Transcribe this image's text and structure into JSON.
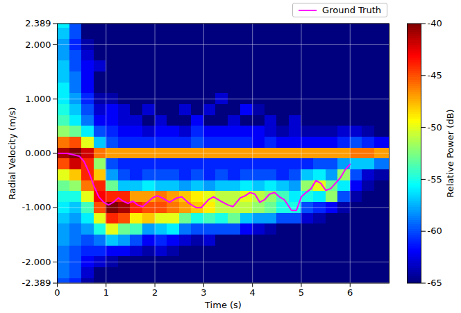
{
  "chart_data": {
    "type": "heatmap",
    "x_label": "Time (s)",
    "y_label": "Radial Velocity (m/s)",
    "xlim": [
      0,
      6.8
    ],
    "ylim": [
      -2.389,
      2.389
    ],
    "xticks": [
      0,
      1,
      2,
      3,
      4,
      5,
      6
    ],
    "yticks": [
      -2.389,
      {
        "value": -2,
        "label": "-2.000"
      },
      {
        "value": -1,
        "label": "-1.000"
      },
      {
        "value": 0,
        "label": "0.000"
      },
      {
        "value": 1,
        "label": "1.000"
      },
      {
        "value": 2,
        "label": "2.000"
      },
      2.389
    ],
    "grid": true,
    "legend": "top-right",
    "heatmap": {
      "x_edges": [
        0,
        0.25,
        0.5,
        0.75,
        1,
        1.25,
        1.5,
        1.75,
        2,
        2.25,
        2.5,
        2.75,
        3,
        3.25,
        3.5,
        3.75,
        4,
        4.25,
        4.5,
        4.75,
        5,
        5.25,
        5.5,
        5.75,
        6,
        6.25,
        6.5,
        6.8
      ],
      "y_edges": [
        2.5,
        2.3,
        2.1,
        1.9,
        1.7,
        1.5,
        1.3,
        1.1,
        0.9,
        0.7,
        0.5,
        0.3,
        0.1,
        -0.1,
        -0.3,
        -0.5,
        -0.7,
        -0.9,
        -1.1,
        -1.3,
        -1.5,
        -1.7,
        -1.9,
        -2.1,
        -2.3,
        -2.5
      ],
      "z": [
        [
          -56,
          -60,
          -65,
          -65,
          -65,
          -65,
          -65,
          -65,
          -65,
          -65,
          -65,
          -65,
          -65,
          -65,
          -65,
          -65,
          -65,
          -65,
          -65,
          -65,
          -65,
          -65,
          -65,
          -65,
          -65,
          -65,
          -65
        ],
        [
          -57,
          -60,
          -65,
          -65,
          -65,
          -65,
          -65,
          -65,
          -65,
          -65,
          -65,
          -65,
          -65,
          -65,
          -65,
          -65,
          -65,
          -65,
          -65,
          -65,
          -65,
          -65,
          -65,
          -65,
          -65,
          -65,
          -65
        ],
        [
          -58,
          -61,
          -64,
          -65,
          -65,
          -65,
          -65,
          -65,
          -65,
          -65,
          -65,
          -65,
          -65,
          -65,
          -65,
          -65,
          -65,
          -65,
          -65,
          -65,
          -65,
          -65,
          -65,
          -65,
          -65,
          -65,
          -65
        ],
        [
          -58,
          -60,
          -63,
          -65,
          -65,
          -65,
          -65,
          -65,
          -65,
          -65,
          -65,
          -65,
          -65,
          -65,
          -65,
          -65,
          -65,
          -65,
          -65,
          -65,
          -65,
          -65,
          -65,
          -65,
          -65,
          -65,
          -65
        ],
        [
          -57,
          -60,
          -62,
          -63,
          -65,
          -65,
          -65,
          -65,
          -65,
          -65,
          -65,
          -65,
          -65,
          -65,
          -65,
          -65,
          -65,
          -65,
          -65,
          -65,
          -65,
          -65,
          -65,
          -65,
          -65,
          -65,
          -65
        ],
        [
          -57,
          -59,
          -62,
          -65,
          -65,
          -65,
          -65,
          -65,
          -65,
          -65,
          -65,
          -65,
          -65,
          -65,
          -65,
          -65,
          -65,
          -65,
          -65,
          -65,
          -65,
          -65,
          -65,
          -65,
          -65,
          -65,
          -65
        ],
        [
          -56,
          -59,
          -62,
          -65,
          -65,
          -65,
          -65,
          -65,
          -65,
          -65,
          -65,
          -65,
          -65,
          -65,
          -65,
          -65,
          -65,
          -65,
          -65,
          -65,
          -65,
          -65,
          -65,
          -65,
          -65,
          -65,
          -65
        ],
        [
          -56,
          -58,
          -61,
          -64,
          -64,
          -65,
          -65,
          -65,
          -65,
          -65,
          -65,
          -65,
          -65,
          -63,
          -65,
          -65,
          -65,
          -65,
          -65,
          -65,
          -65,
          -65,
          -65,
          -65,
          -65,
          -65,
          -65
        ],
        [
          -55,
          -57,
          -60,
          -63,
          -62,
          -63,
          -65,
          -63,
          -65,
          -65,
          -63,
          -65,
          -63,
          -65,
          -65,
          -62,
          -64,
          -65,
          -65,
          -65,
          -65,
          -65,
          -65,
          -65,
          -65,
          -65,
          -65
        ],
        [
          -54,
          -56,
          -59,
          -62,
          -62,
          -63,
          -63,
          -65,
          -63,
          -65,
          -65,
          -62,
          -65,
          -65,
          -63,
          -65,
          -65,
          -63,
          -65,
          -63,
          -65,
          -65,
          -65,
          -65,
          -65,
          -65,
          -65
        ],
        [
          -52,
          -53,
          -56,
          -60,
          -61,
          -62,
          -62,
          -63,
          -62,
          -62,
          -63,
          -61,
          -62,
          -62,
          -62,
          -62,
          -62,
          -63,
          -64,
          -63,
          -64,
          -64,
          -64,
          -63,
          -63,
          -64,
          -65
        ],
        [
          -46,
          -45,
          -50,
          -57,
          -60,
          -61,
          -61,
          -61,
          -61,
          -61,
          -61,
          -60,
          -61,
          -61,
          -61,
          -61,
          -62,
          -61,
          -62,
          -62,
          -62,
          -62,
          -62,
          -61,
          -60,
          -61,
          -62
        ],
        [
          -41,
          -40,
          -42,
          -46,
          -47,
          -47,
          -47,
          -47,
          -47,
          -47,
          -47,
          -47,
          -47,
          -47,
          -47,
          -47,
          -47,
          -47,
          -47,
          -47,
          -47,
          -47,
          -47,
          -47,
          -46,
          -46,
          -47
        ],
        [
          -45,
          -42,
          -44,
          -52,
          -60,
          -61,
          -61,
          -61,
          -61,
          -61,
          -61,
          -61,
          -61,
          -61,
          -61,
          -61,
          -61,
          -61,
          -61,
          -61,
          -61,
          -60,
          -60,
          -58,
          -57,
          -57,
          -59
        ],
        [
          -50,
          -48,
          -44,
          -48,
          -58,
          -60,
          -61,
          -60,
          -60,
          -60,
          -61,
          -60,
          -61,
          -60,
          -61,
          -60,
          -60,
          -60,
          -61,
          -60,
          -57,
          -56,
          -58,
          -52,
          -60,
          -63,
          -64
        ],
        [
          -53,
          -52,
          -46,
          -44,
          -53,
          -57,
          -57,
          -56,
          -57,
          -57,
          -58,
          -57,
          -58,
          -57,
          -57,
          -56,
          -57,
          -56,
          -57,
          -58,
          -52,
          -50,
          -53,
          -56,
          -62,
          -64,
          -65
        ],
        [
          -55,
          -55,
          -50,
          -43,
          -44,
          -44,
          -47,
          -47,
          -46,
          -47,
          -48,
          -49,
          -50,
          -51,
          -51,
          -50,
          -51,
          -52,
          -54,
          -56,
          -55,
          -56,
          -52,
          -60,
          -64,
          -65,
          -65
        ],
        [
          -56,
          -57,
          -54,
          -45,
          -40,
          -41,
          -44,
          -45,
          -45,
          -46,
          -47,
          -48,
          -49,
          -51,
          -51,
          -51,
          -52,
          -53,
          -55,
          -55,
          -60,
          -61,
          -62,
          -64,
          -65,
          -65,
          -65
        ],
        [
          -57,
          -58,
          -56,
          -50,
          -44,
          -45,
          -49,
          -48,
          -50,
          -50,
          -53,
          -55,
          -54,
          -55,
          -53,
          -57,
          -58,
          -58,
          -60,
          -60,
          -63,
          -64,
          -65,
          -65,
          -65,
          -65,
          -65
        ],
        [
          -58,
          -59,
          -58,
          -55,
          -50,
          -53,
          -54,
          -58,
          -57,
          -56,
          -59,
          -60,
          -60,
          -60,
          -60,
          -62,
          -63,
          -64,
          -65,
          -65,
          -65,
          -65,
          -65,
          -65,
          -65,
          -65,
          -65
        ],
        [
          -58,
          -59,
          -60,
          -59,
          -57,
          -58,
          -60,
          -62,
          -61,
          -62,
          -63,
          -64,
          -63,
          -65,
          -65,
          -65,
          -65,
          -65,
          -65,
          -65,
          -65,
          -65,
          -65,
          -65,
          -65,
          -65,
          -65
        ],
        [
          -59,
          -60,
          -61,
          -61,
          -62,
          -62,
          -63,
          -64,
          -63,
          -64,
          -65,
          -65,
          -65,
          -65,
          -65,
          -65,
          -65,
          -65,
          -65,
          -65,
          -65,
          -65,
          -65,
          -65,
          -65,
          -65,
          -65
        ],
        [
          -59,
          -60,
          -62,
          -63,
          -64,
          -65,
          -65,
          -65,
          -65,
          -65,
          -65,
          -65,
          -65,
          -65,
          -65,
          -65,
          -65,
          -65,
          -65,
          -65,
          -65,
          -65,
          -65,
          -65,
          -65,
          -65,
          -65
        ],
        [
          -59,
          -60,
          -63,
          -65,
          -65,
          -65,
          -65,
          -65,
          -65,
          -65,
          -65,
          -65,
          -65,
          -65,
          -65,
          -65,
          -65,
          -65,
          -65,
          -65,
          -65,
          -65,
          -65,
          -65,
          -65,
          -65,
          -65
        ],
        [
          -60,
          -61,
          -64,
          -65,
          -65,
          -65,
          -65,
          -65,
          -65,
          -65,
          -65,
          -65,
          -65,
          -65,
          -65,
          -65,
          -65,
          -65,
          -65,
          -65,
          -65,
          -65,
          -65,
          -65,
          -65,
          -65,
          -65
        ]
      ],
      "colorbar": {
        "label": "Relative Power (dB)",
        "range": [
          -65,
          -40
        ],
        "ticks": [
          -65,
          -60,
          -55,
          -50,
          -45,
          -40
        ]
      }
    },
    "series": [
      {
        "name": "Ground Truth",
        "type": "line",
        "color": "#ff00ff",
        "x": [
          0,
          0.2,
          0.3,
          0.45,
          0.55,
          0.65,
          0.75,
          0.85,
          0.95,
          1.05,
          1.15,
          1.25,
          1.35,
          1.45,
          1.55,
          1.65,
          1.75,
          1.85,
          1.95,
          2.05,
          2.15,
          2.3,
          2.45,
          2.55,
          2.7,
          2.85,
          2.95,
          3.1,
          3.2,
          3.35,
          3.5,
          3.6,
          3.75,
          3.85,
          3.95,
          4.05,
          4.15,
          4.25,
          4.35,
          4.45,
          4.55,
          4.65,
          4.8,
          4.9,
          5.0,
          5.1,
          5.2,
          5.3,
          5.4,
          5.5,
          5.6,
          5.7,
          5.8,
          5.9,
          6.0
        ],
        "values": [
          0,
          0,
          -0.02,
          -0.05,
          -0.15,
          -0.35,
          -0.6,
          -0.8,
          -0.9,
          -0.95,
          -0.9,
          -0.82,
          -0.88,
          -0.92,
          -0.88,
          -0.95,
          -0.98,
          -0.9,
          -0.82,
          -0.78,
          -0.82,
          -0.9,
          -0.82,
          -0.8,
          -0.92,
          -1.0,
          -1.0,
          -0.85,
          -0.8,
          -0.88,
          -0.95,
          -0.98,
          -0.82,
          -0.78,
          -0.72,
          -0.75,
          -0.9,
          -0.85,
          -0.75,
          -0.72,
          -0.8,
          -0.85,
          -1.05,
          -1.05,
          -0.8,
          -0.72,
          -0.65,
          -0.5,
          -0.55,
          -0.68,
          -0.65,
          -0.55,
          -0.45,
          -0.3,
          -0.2
        ]
      }
    ]
  }
}
